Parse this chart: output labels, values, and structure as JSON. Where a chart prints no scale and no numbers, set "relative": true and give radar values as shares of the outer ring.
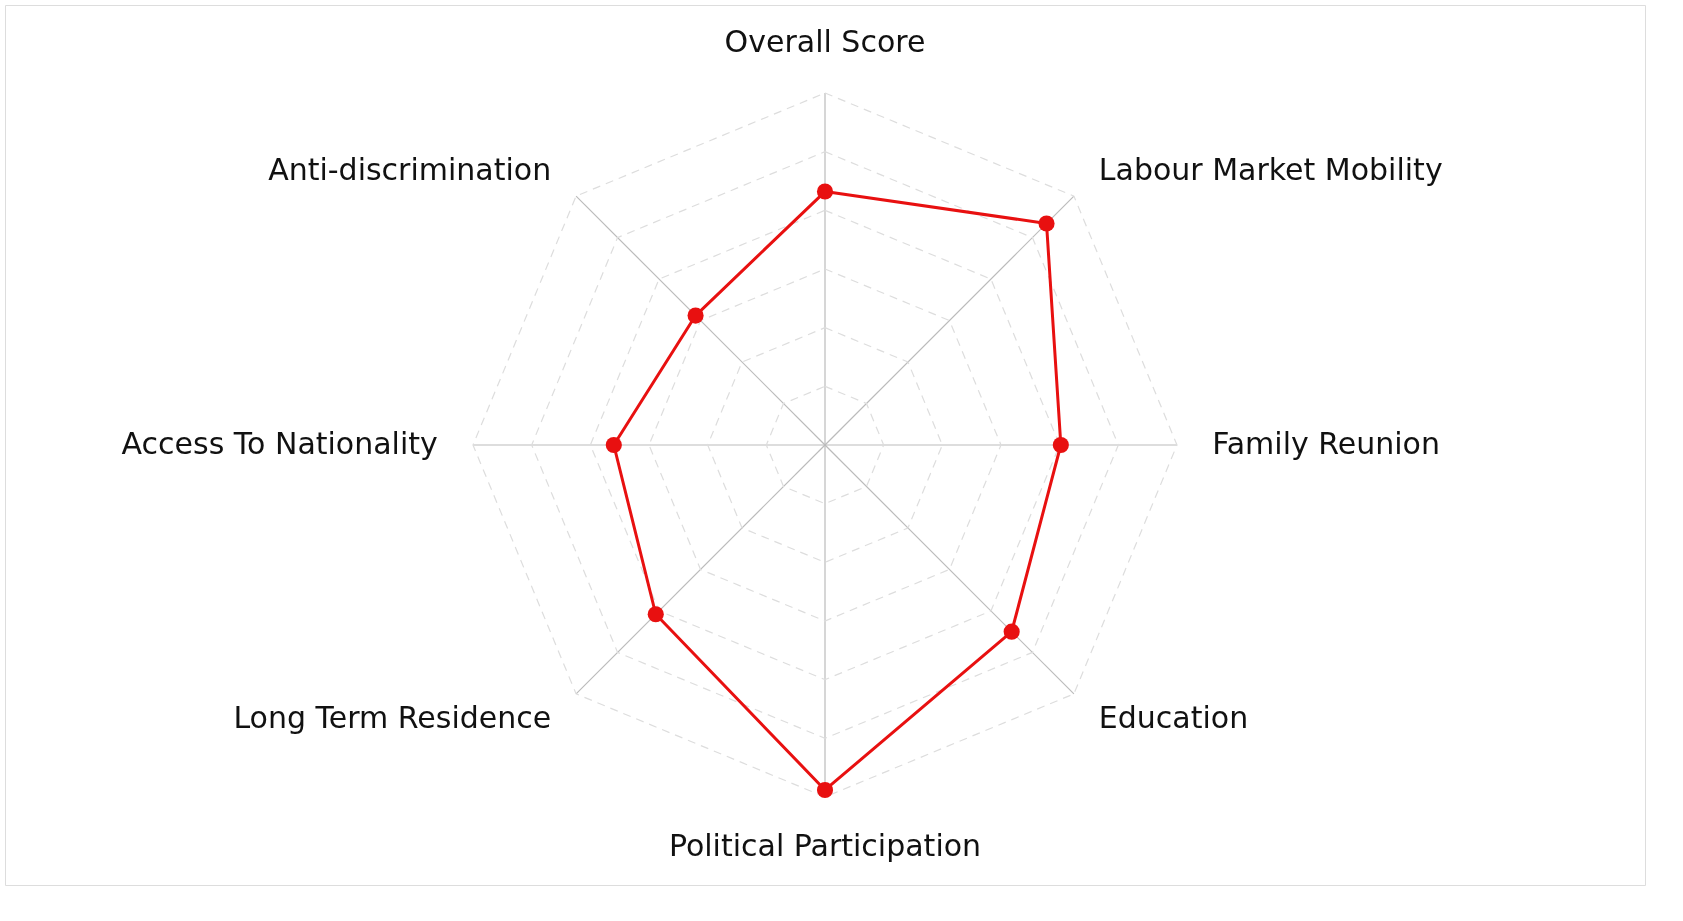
{
  "chart_data": {
    "type": "radar",
    "relative": true,
    "grid": true,
    "marker": "circle",
    "categories": [
      "Overall Score",
      "Labour Market Mobility",
      "Family Reunion",
      "Education",
      "Political Participation",
      "Long Term Residence",
      "Access To Nationality",
      "Anti-discrimination"
    ],
    "series": [
      {
        "color": "#e81010",
        "values": [
          0.72,
          0.89,
          0.67,
          0.75,
          0.98,
          0.68,
          0.6,
          0.52
        ]
      }
    ]
  }
}
